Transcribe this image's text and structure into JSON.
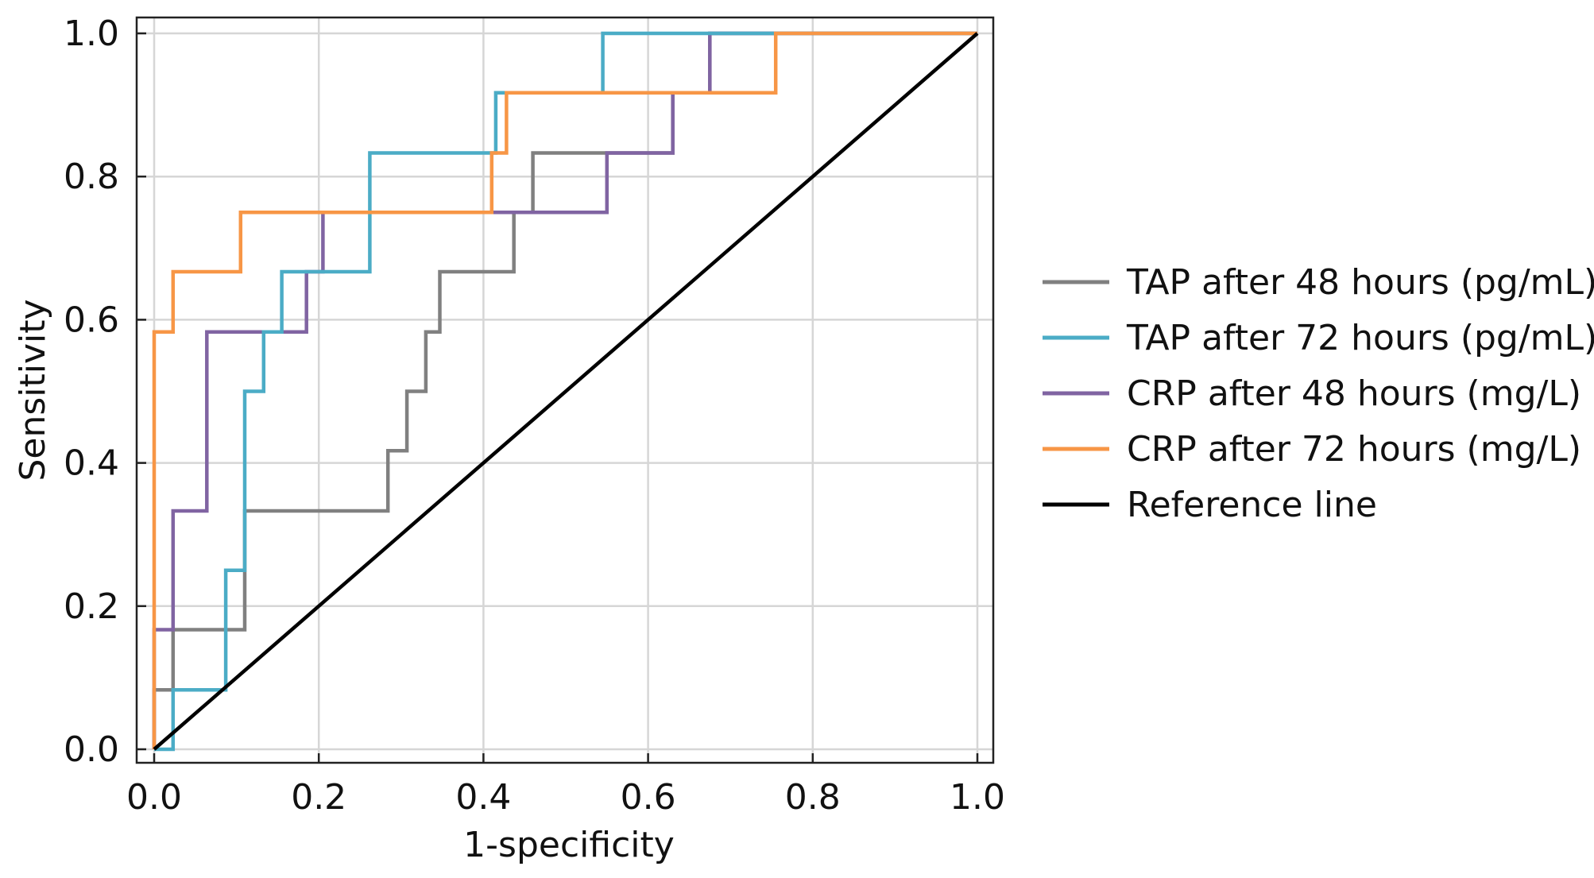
{
  "chart_data": {
    "type": "line",
    "title": "",
    "xlabel": "1-specificity",
    "ylabel": "Sensitivity",
    "xlim": [
      0,
      1
    ],
    "ylim": [
      0,
      1
    ],
    "x_ticks": [
      "0.0",
      "0.2",
      "0.4",
      "0.6",
      "0.8",
      "1.0"
    ],
    "y_ticks": [
      "0.0",
      "0.2",
      "0.4",
      "0.6",
      "0.8",
      "1.0"
    ],
    "grid": true,
    "legend_position": "right",
    "series": [
      {
        "name": "TAP after 48 hours (pg/mL)",
        "color": "#808080",
        "points": [
          [
            0,
            0
          ],
          [
            0,
            0.083
          ],
          [
            0.023,
            0.083
          ],
          [
            0.023,
            0.167
          ],
          [
            0.11,
            0.167
          ],
          [
            0.11,
            0.333
          ],
          [
            0.284,
            0.333
          ],
          [
            0.284,
            0.417
          ],
          [
            0.307,
            0.417
          ],
          [
            0.307,
            0.5
          ],
          [
            0.33,
            0.5
          ],
          [
            0.33,
            0.583
          ],
          [
            0.347,
            0.583
          ],
          [
            0.347,
            0.667
          ],
          [
            0.437,
            0.667
          ],
          [
            0.437,
            0.75
          ],
          [
            0.46,
            0.75
          ],
          [
            0.46,
            0.833
          ],
          [
            0.63,
            0.833
          ],
          [
            0.63,
            0.917
          ],
          [
            0.675,
            0.917
          ],
          [
            0.675,
            1
          ],
          [
            1,
            1
          ]
        ]
      },
      {
        "name": "TAP after 72 hours (pg/mL)",
        "color": "#4BACC6",
        "points": [
          [
            0,
            0
          ],
          [
            0.023,
            0
          ],
          [
            0.023,
            0.083
          ],
          [
            0.087,
            0.083
          ],
          [
            0.087,
            0.25
          ],
          [
            0.11,
            0.25
          ],
          [
            0.11,
            0.5
          ],
          [
            0.133,
            0.5
          ],
          [
            0.133,
            0.583
          ],
          [
            0.155,
            0.583
          ],
          [
            0.155,
            0.667
          ],
          [
            0.262,
            0.667
          ],
          [
            0.262,
            0.833
          ],
          [
            0.415,
            0.833
          ],
          [
            0.415,
            0.917
          ],
          [
            0.545,
            0.917
          ],
          [
            0.545,
            1
          ],
          [
            1,
            1
          ]
        ]
      },
      {
        "name": "CRP after 48 hours (mg/L)",
        "color": "#8064A2",
        "points": [
          [
            0,
            0
          ],
          [
            0,
            0.167
          ],
          [
            0.023,
            0.167
          ],
          [
            0.023,
            0.333
          ],
          [
            0.064,
            0.333
          ],
          [
            0.064,
            0.583
          ],
          [
            0.185,
            0.583
          ],
          [
            0.185,
            0.667
          ],
          [
            0.205,
            0.667
          ],
          [
            0.205,
            0.75
          ],
          [
            0.55,
            0.75
          ],
          [
            0.55,
            0.833
          ],
          [
            0.63,
            0.833
          ],
          [
            0.63,
            0.917
          ],
          [
            0.675,
            0.917
          ],
          [
            0.675,
            1
          ],
          [
            1,
            1
          ]
        ]
      },
      {
        "name": "CRP after 72 hours (mg/L)",
        "color": "#F79646",
        "points": [
          [
            0,
            0
          ],
          [
            0,
            0.583
          ],
          [
            0.023,
            0.583
          ],
          [
            0.023,
            0.667
          ],
          [
            0.105,
            0.667
          ],
          [
            0.105,
            0.75
          ],
          [
            0.41,
            0.75
          ],
          [
            0.41,
            0.833
          ],
          [
            0.428,
            0.833
          ],
          [
            0.428,
            0.917
          ],
          [
            0.755,
            0.917
          ],
          [
            0.755,
            1
          ],
          [
            1,
            1
          ]
        ]
      },
      {
        "name": "Reference line",
        "color": "#000000",
        "points": [
          [
            0,
            0
          ],
          [
            1,
            1
          ]
        ]
      }
    ]
  }
}
